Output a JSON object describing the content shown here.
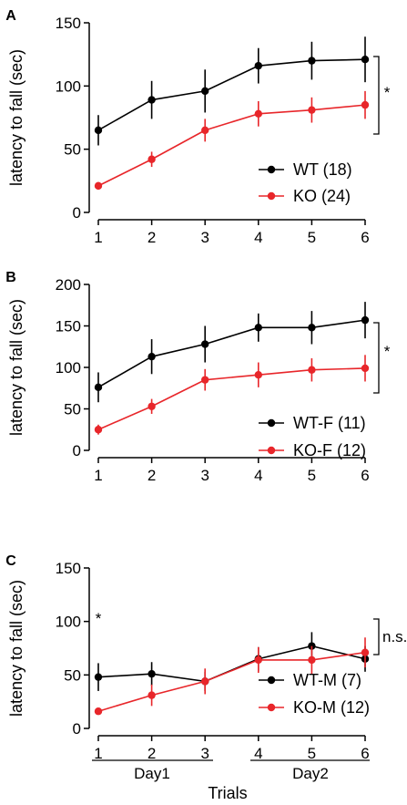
{
  "chart_data": [
    {
      "type": "line",
      "panel_label": "A",
      "ylabel": "latency to fall (sec)",
      "ylim": [
        0,
        150
      ],
      "yticks": [
        0,
        50,
        100,
        150
      ],
      "x": [
        1,
        2,
        3,
        4,
        5,
        6
      ],
      "series": [
        {
          "name": "WT (18)",
          "color": "#000000",
          "values": [
            65,
            89,
            96,
            116,
            120,
            121
          ],
          "errors": [
            12,
            15,
            17,
            14,
            15,
            18
          ]
        },
        {
          "name": "KO (24)",
          "color": "#e8262a",
          "values": [
            21,
            42,
            65,
            78,
            81,
            85
          ],
          "errors": [
            3,
            6,
            9,
            10,
            10,
            11
          ]
        }
      ],
      "annotations": [
        {
          "text": "*"
        }
      ]
    },
    {
      "type": "line",
      "panel_label": "B",
      "ylabel": "latency to fall (sec)",
      "ylim": [
        0,
        200
      ],
      "yticks": [
        0,
        50,
        100,
        150,
        200
      ],
      "x": [
        1,
        2,
        3,
        4,
        5,
        6
      ],
      "series": [
        {
          "name": "WT-F (11)",
          "color": "#000000",
          "values": [
            76,
            113,
            128,
            148,
            148,
            157
          ],
          "errors": [
            18,
            21,
            22,
            17,
            20,
            22
          ]
        },
        {
          "name": "KO-F (12)",
          "color": "#e8262a",
          "values": [
            25,
            53,
            85,
            91,
            97,
            99
          ],
          "errors": [
            6,
            9,
            13,
            15,
            14,
            16
          ]
        }
      ],
      "annotations": [
        {
          "text": "*"
        }
      ]
    },
    {
      "type": "line",
      "panel_label": "C",
      "ylabel": "latency to fall (sec)",
      "xlabel": "Trials",
      "ylim": [
        0,
        150
      ],
      "yticks": [
        0,
        50,
        100,
        150
      ],
      "x": [
        1,
        2,
        3,
        4,
        5,
        6
      ],
      "series": [
        {
          "name": "WT-M (7)",
          "color": "#000000",
          "values": [
            48,
            51,
            44,
            65,
            77,
            65
          ],
          "errors": [
            13,
            11,
            9,
            11,
            13,
            12
          ]
        },
        {
          "name": "KO-M (12)",
          "color": "#e8262a",
          "values": [
            16,
            31,
            44,
            64,
            64,
            71
          ],
          "errors": [
            2,
            10,
            12,
            12,
            13,
            14
          ]
        }
      ],
      "annotations": [
        {
          "text": "*"
        },
        {
          "text": "n.s."
        }
      ],
      "day_groups": [
        {
          "label": "Day1"
        },
        {
          "label": "Day2"
        }
      ]
    }
  ]
}
